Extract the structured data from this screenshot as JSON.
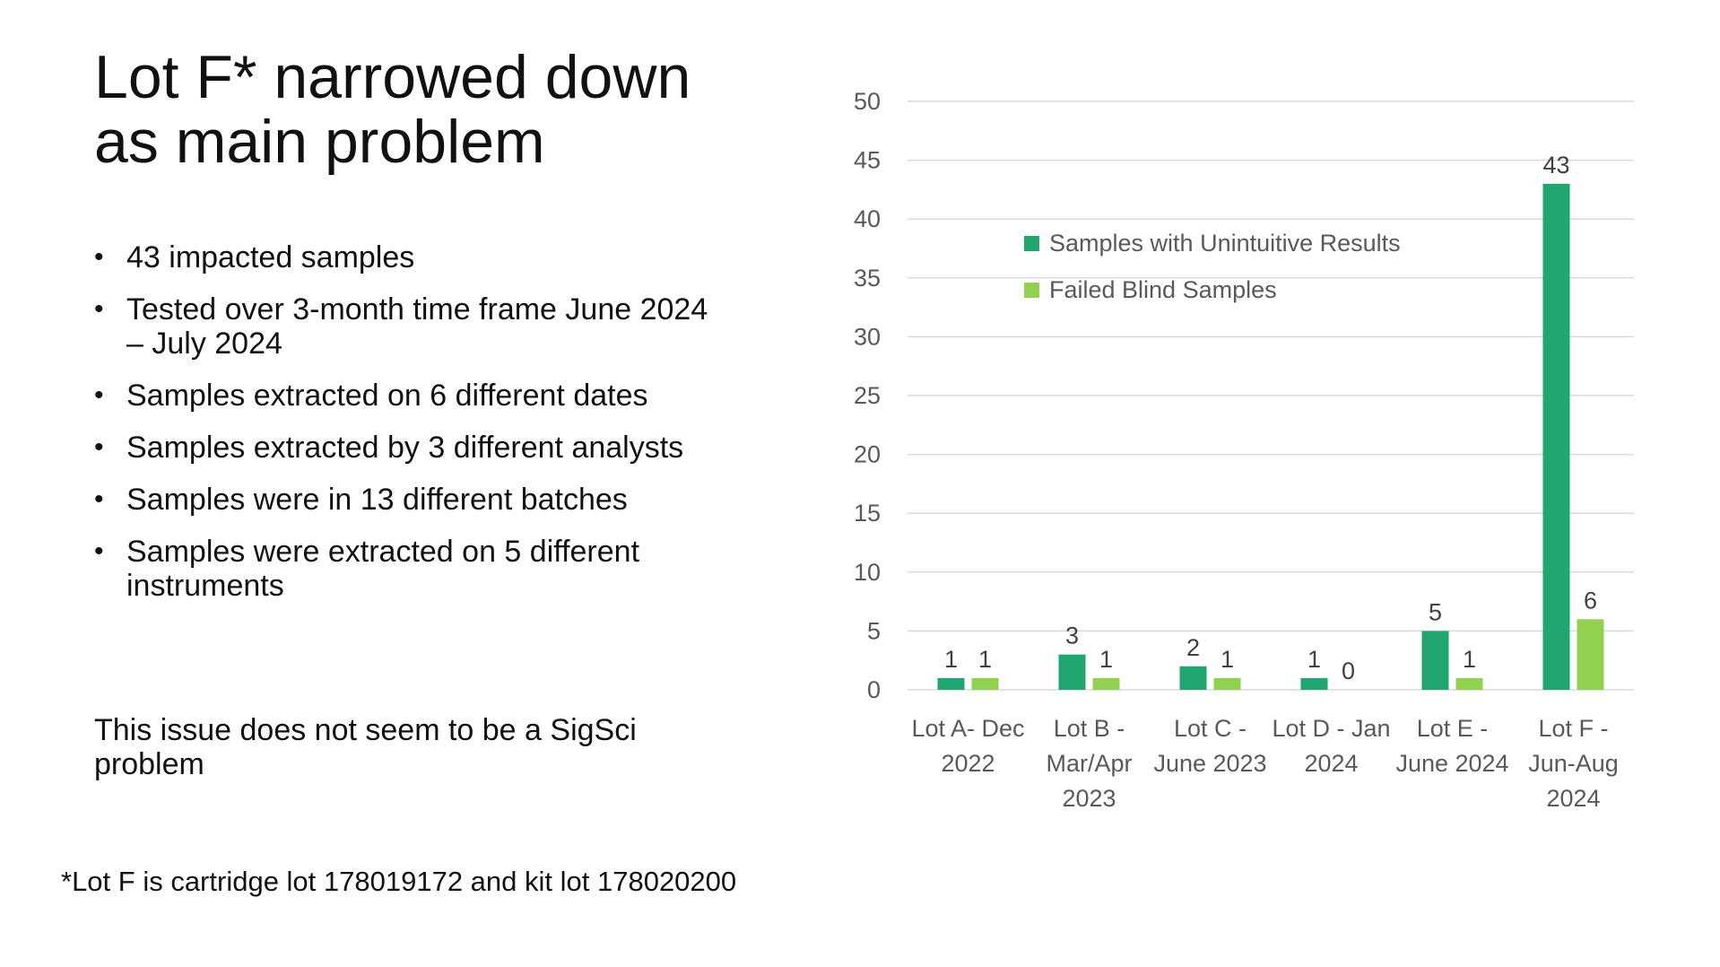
{
  "slide": {
    "title": "Lot F* narrowed down as main problem",
    "bullets": [
      "43 impacted samples",
      "Tested over 3-month time frame June 2024 – July 2024",
      "Samples extracted on 6 different dates",
      "Samples extracted by 3 different analysts",
      "Samples were in 13 different batches",
      "Samples were extracted on 5 different instruments"
    ],
    "note": "This issue does not seem to be a SigSci problem",
    "footnote": "*Lot F is cartridge lot 178019172 and kit lot 178020200"
  },
  "chart_data": {
    "type": "bar",
    "title": "",
    "xlabel": "",
    "ylabel": "",
    "ylim": [
      0,
      50
    ],
    "yticks": [
      0,
      5,
      10,
      15,
      20,
      25,
      30,
      35,
      40,
      45,
      50
    ],
    "grid": true,
    "legend_position": "upper-left inside plot",
    "categories": [
      [
        "Lot A- Dec",
        "2022"
      ],
      [
        "Lot B -",
        "Mar/Apr",
        "2023"
      ],
      [
        "Lot C -",
        "June 2023"
      ],
      [
        "Lot D - Jan",
        "2024"
      ],
      [
        "Lot E -",
        "June 2024"
      ],
      [
        "Lot F -",
        "Jun-Aug",
        "2024"
      ]
    ],
    "series": [
      {
        "name": "Samples with Unintuitive Results",
        "color": "#22a66f",
        "values": [
          1,
          3,
          2,
          1,
          5,
          43
        ]
      },
      {
        "name": "Failed Blind Samples",
        "color": "#92d050",
        "values": [
          1,
          1,
          1,
          0,
          1,
          6
        ]
      }
    ]
  }
}
